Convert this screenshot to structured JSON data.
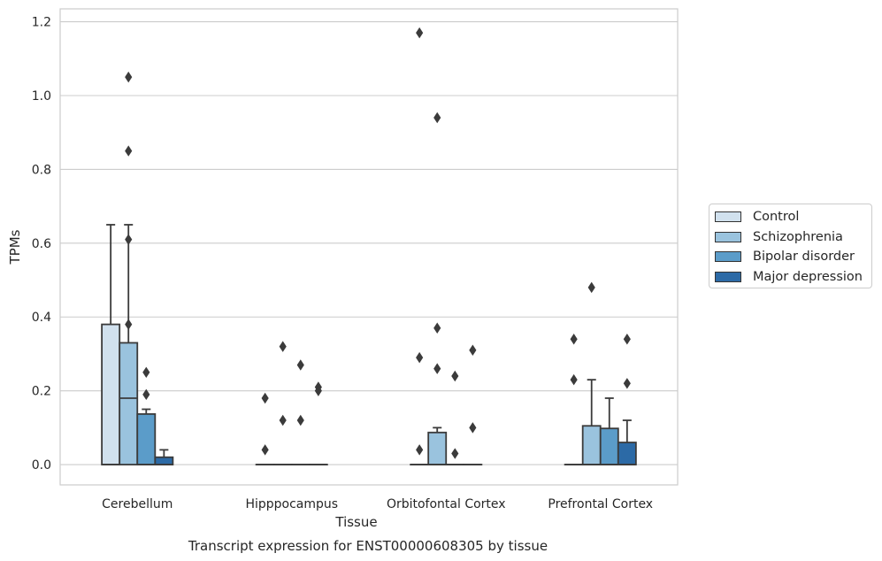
{
  "chart_data": {
    "type": "box",
    "title": "Transcript expression for ENST00000608305 by tissue",
    "xlabel": "Tissue",
    "ylabel": "TPMs",
    "ylim": [
      -0.055,
      1.235
    ],
    "yticks": [
      0.0,
      0.2,
      0.4,
      0.6,
      0.8,
      1.0,
      1.2
    ],
    "ytick_labels": [
      "0.0",
      "0.2",
      "0.4",
      "0.6",
      "0.8",
      "1.0",
      "1.2"
    ],
    "grid": true,
    "legend_position": "right",
    "categories": [
      "Cerebellum",
      "Hipppocampus",
      "Orbitofontal Cortex",
      "Prefrontal Cortex"
    ],
    "series": [
      {
        "name": "Control",
        "color": "#d1e1ee",
        "boxes": [
          {
            "q1": 0.0,
            "median": 0.0,
            "q3": 0.38,
            "whisker_low": 0.0,
            "whisker_high": 0.65,
            "outliers": []
          },
          {
            "q1": 0.0,
            "median": 0.0,
            "q3": 0.0,
            "whisker_low": 0.0,
            "whisker_high": 0.0,
            "outliers": [
              0.18,
              0.04
            ]
          },
          {
            "q1": 0.0,
            "median": 0.0,
            "q3": 0.0,
            "whisker_low": 0.0,
            "whisker_high": 0.0,
            "outliers": [
              1.17,
              0.29,
              0.04
            ]
          },
          {
            "q1": 0.0,
            "median": 0.0,
            "q3": 0.0,
            "whisker_low": 0.0,
            "whisker_high": 0.0,
            "outliers": [
              0.34,
              0.23
            ]
          }
        ]
      },
      {
        "name": "Schizophrenia",
        "color": "#9ac3de",
        "boxes": [
          {
            "q1": 0.0,
            "median": 0.18,
            "q3": 0.33,
            "whisker_low": 0.0,
            "whisker_high": 0.65,
            "outliers": [
              1.05,
              0.85,
              0.61,
              0.38
            ]
          },
          {
            "q1": 0.0,
            "median": 0.0,
            "q3": 0.0,
            "whisker_low": 0.0,
            "whisker_high": 0.0,
            "outliers": [
              0.32,
              0.12
            ]
          },
          {
            "q1": 0.0,
            "median": 0.0,
            "q3": 0.087,
            "whisker_low": 0.0,
            "whisker_high": 0.1,
            "outliers": [
              0.94,
              0.37,
              0.26
            ]
          },
          {
            "q1": 0.0,
            "median": 0.0,
            "q3": 0.105,
            "whisker_low": 0.0,
            "whisker_high": 0.23,
            "outliers": [
              0.48
            ]
          }
        ]
      },
      {
        "name": "Bipolar disorder",
        "color": "#5b9cc9",
        "boxes": [
          {
            "q1": 0.0,
            "median": 0.0,
            "q3": 0.137,
            "whisker_low": 0.0,
            "whisker_high": 0.15,
            "outliers": [
              0.25,
              0.19
            ]
          },
          {
            "q1": 0.0,
            "median": 0.0,
            "q3": 0.0,
            "whisker_low": 0.0,
            "whisker_high": 0.0,
            "outliers": [
              0.27,
              0.12
            ]
          },
          {
            "q1": 0.0,
            "median": 0.0,
            "q3": 0.0,
            "whisker_low": 0.0,
            "whisker_high": 0.0,
            "outliers": [
              0.24,
              0.03
            ]
          },
          {
            "q1": 0.0,
            "median": 0.0,
            "q3": 0.098,
            "whisker_low": 0.0,
            "whisker_high": 0.18,
            "outliers": []
          }
        ]
      },
      {
        "name": "Major depression",
        "color": "#2c6aa6",
        "boxes": [
          {
            "q1": 0.0,
            "median": 0.0,
            "q3": 0.02,
            "whisker_low": 0.0,
            "whisker_high": 0.04,
            "outliers": []
          },
          {
            "q1": 0.0,
            "median": 0.0,
            "q3": 0.0,
            "whisker_low": 0.0,
            "whisker_high": 0.0,
            "outliers": [
              0.21,
              0.2
            ]
          },
          {
            "q1": 0.0,
            "median": 0.0,
            "q3": 0.0,
            "whisker_low": 0.0,
            "whisker_high": 0.0,
            "outliers": [
              0.31,
              0.1
            ]
          },
          {
            "q1": 0.0,
            "median": 0.0,
            "q3": 0.06,
            "whisker_low": 0.0,
            "whisker_high": 0.12,
            "outliers": [
              0.34,
              0.22
            ]
          }
        ]
      }
    ]
  }
}
